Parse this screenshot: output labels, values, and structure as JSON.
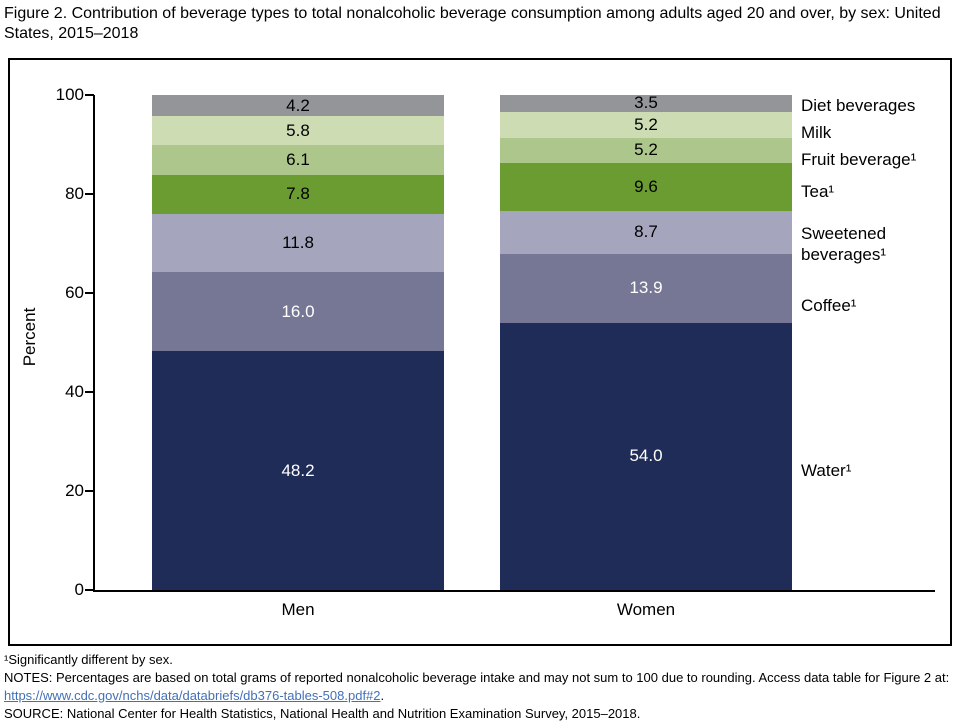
{
  "title": "Figure 2. Contribution of beverage types to total nonalcoholic beverage consumption among adults aged 20 and over, by sex: United States, 2015–2018",
  "chart_data": {
    "type": "bar",
    "stacked": true,
    "categories": [
      "Men",
      "Women"
    ],
    "series": [
      {
        "name": "Water¹",
        "values": [
          48.2,
          54.0
        ],
        "color": "#1e2c57",
        "label_color": "#ffffff"
      },
      {
        "name": "Coffee¹",
        "values": [
          16.0,
          13.9
        ],
        "color": "#767795",
        "label_color": "#ffffff"
      },
      {
        "name": "Sweetened beverages¹",
        "values": [
          11.8,
          8.7
        ],
        "color": "#a5a6bd",
        "label_color": "#000000"
      },
      {
        "name": "Tea¹",
        "values": [
          7.8,
          9.6
        ],
        "color": "#6a9c31",
        "label_color": "#000000"
      },
      {
        "name": "Fruit beverage¹",
        "values": [
          6.1,
          5.2
        ],
        "color": "#adc68c",
        "label_color": "#000000"
      },
      {
        "name": "Milk",
        "values": [
          5.8,
          5.2
        ],
        "color": "#cedcb4",
        "label_color": "#000000"
      },
      {
        "name": "Diet beverages",
        "values": [
          4.2,
          3.5
        ],
        "color": "#939598",
        "label_color": "#000000"
      }
    ],
    "ylabel": "Percent",
    "yticks": [
      0,
      20,
      40,
      60,
      80,
      100
    ],
    "ylim": [
      0,
      100
    ],
    "legend_position": "right",
    "grid": false
  },
  "colors": {
    "axis": "#000000",
    "link": "#4270b8"
  },
  "footnotes": {
    "significance": "¹Significantly different by sex.",
    "notes": "NOTES: Percentages are based on total grams of reported nonalcoholic beverage intake and may not sum to 100 due to rounding. Access data table for Figure 2 at: ",
    "link": "https://www.cdc.gov/nchs/data/databriefs/db376-tables-508.pdf#2",
    "link_suffix": ".",
    "source": "SOURCE: National Center for Health Statistics, National Health and Nutrition Examination Survey, 2015–2018."
  }
}
